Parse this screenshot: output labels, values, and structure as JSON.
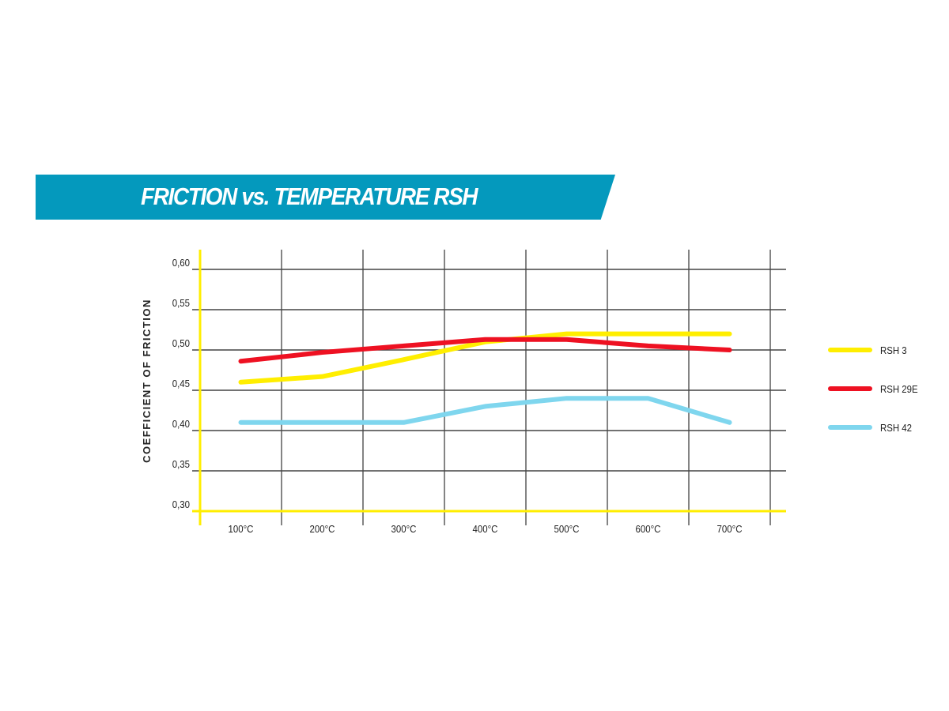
{
  "chart_data": {
    "type": "line",
    "title": "FRICTION vs. TEMPERATURE RSH",
    "xlabel": "",
    "ylabel": "COEFFICIENT OF FRICTION",
    "categories": [
      "100°C",
      "200°C",
      "300°C",
      "400°C",
      "500°C",
      "600°C",
      "700°C"
    ],
    "yticks": [
      "0,30",
      "0,35",
      "0,40",
      "0,45",
      "0,50",
      "0,55",
      "0,60"
    ],
    "ylim": [
      0.3,
      0.6
    ],
    "grid": true,
    "legend_position": "right",
    "series": [
      {
        "name": "RSH 3",
        "color": "#ffee00",
        "values": [
          0.46,
          0.467,
          0.488,
          0.51,
          0.52,
          0.52,
          0.52
        ]
      },
      {
        "name": "RSH 29E",
        "color": "#ee1122",
        "values": [
          0.486,
          0.497,
          0.505,
          0.513,
          0.513,
          0.505,
          0.5
        ]
      },
      {
        "name": "RSH 42",
        "color": "#7fd6ee",
        "values": [
          0.41,
          0.41,
          0.41,
          0.43,
          0.44,
          0.44,
          0.41
        ]
      }
    ]
  }
}
